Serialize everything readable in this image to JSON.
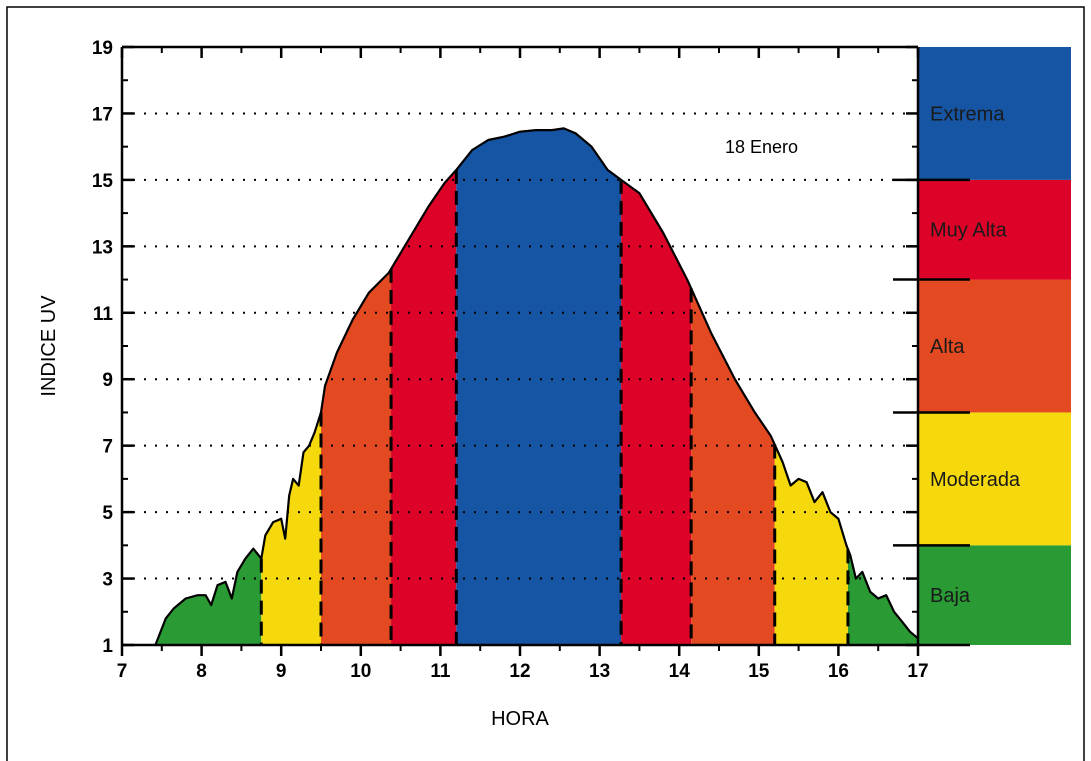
{
  "chart_data": {
    "type": "area",
    "title": "",
    "annotation": "18 Enero",
    "xlabel": "HORA",
    "ylabel": "INDICE UV",
    "xlim": [
      7,
      17
    ],
    "ylim": [
      1,
      19
    ],
    "x_ticks": [
      "7",
      "8",
      "9",
      "10",
      "11",
      "12",
      "13",
      "14",
      "15",
      "16",
      "17"
    ],
    "y_ticks": [
      "1",
      "3",
      "5",
      "7",
      "9",
      "11",
      "13",
      "15",
      "17",
      "19"
    ],
    "grid": "horizontal-dotted",
    "series": [
      {
        "x": [
          7.42,
          7.55,
          7.65,
          7.8,
          7.95,
          8.05,
          8.12,
          8.2,
          8.3,
          8.38,
          8.45,
          8.55,
          8.65,
          8.75,
          8.8,
          8.9,
          9.0,
          9.05,
          9.1,
          9.15,
          9.22,
          9.28,
          9.35,
          9.42,
          9.5,
          9.55,
          9.7,
          9.9,
          10.1,
          10.35,
          10.6,
          10.85,
          11.05,
          11.2,
          11.4,
          11.6,
          11.8,
          12.0,
          12.2,
          12.4,
          12.55,
          12.7,
          12.9,
          13.1,
          13.27,
          13.5,
          13.8,
          14.1,
          14.4,
          14.7,
          14.95,
          15.15,
          15.3,
          15.4,
          15.5,
          15.6,
          15.7,
          15.8,
          15.9,
          16.0,
          16.1,
          16.15,
          16.22,
          16.3,
          16.4,
          16.5,
          16.6,
          16.7,
          16.8,
          16.9,
          17.0
        ],
        "y": [
          1.0,
          1.8,
          2.1,
          2.4,
          2.5,
          2.5,
          2.2,
          2.8,
          2.9,
          2.4,
          3.2,
          3.6,
          3.9,
          3.6,
          4.3,
          4.7,
          4.8,
          4.2,
          5.5,
          6.0,
          5.8,
          6.8,
          7.0,
          7.4,
          8.0,
          8.8,
          9.8,
          10.8,
          11.6,
          12.2,
          13.2,
          14.2,
          14.9,
          15.3,
          15.9,
          16.2,
          16.3,
          16.45,
          16.5,
          16.5,
          16.55,
          16.4,
          16.0,
          15.3,
          15.0,
          14.6,
          13.4,
          12.0,
          10.4,
          9.0,
          8.0,
          7.3,
          6.5,
          5.8,
          6.0,
          5.9,
          5.3,
          5.6,
          5.0,
          4.8,
          4.0,
          3.7,
          3.0,
          3.2,
          2.6,
          2.4,
          2.5,
          2.0,
          1.7,
          1.4,
          1.2
        ]
      }
    ],
    "segment_boundaries_x": [
      8.75,
      9.5,
      10.38,
      11.2,
      13.27,
      14.15,
      15.2,
      16.12
    ],
    "segment_colors": [
      "#2a9a34",
      "#f6d90c",
      "#e44a21",
      "#dd0227",
      "#1655a3",
      "#dd0227",
      "#e44a21",
      "#f6d90c",
      "#2a9a34"
    ],
    "bands": [
      {
        "name": "Baja",
        "from": 1,
        "to": 4,
        "color": "#2a9a34"
      },
      {
        "name": "Moderada",
        "from": 4,
        "to": 8,
        "color": "#f6d90c"
      },
      {
        "name": "Alta",
        "from": 8,
        "to": 12,
        "color": "#e44a21"
      },
      {
        "name": "Muy Alta",
        "from": 12,
        "to": 15,
        "color": "#dd0227"
      },
      {
        "name": "Extrema",
        "from": 15,
        "to": 19,
        "color": "#1655a3"
      }
    ]
  }
}
